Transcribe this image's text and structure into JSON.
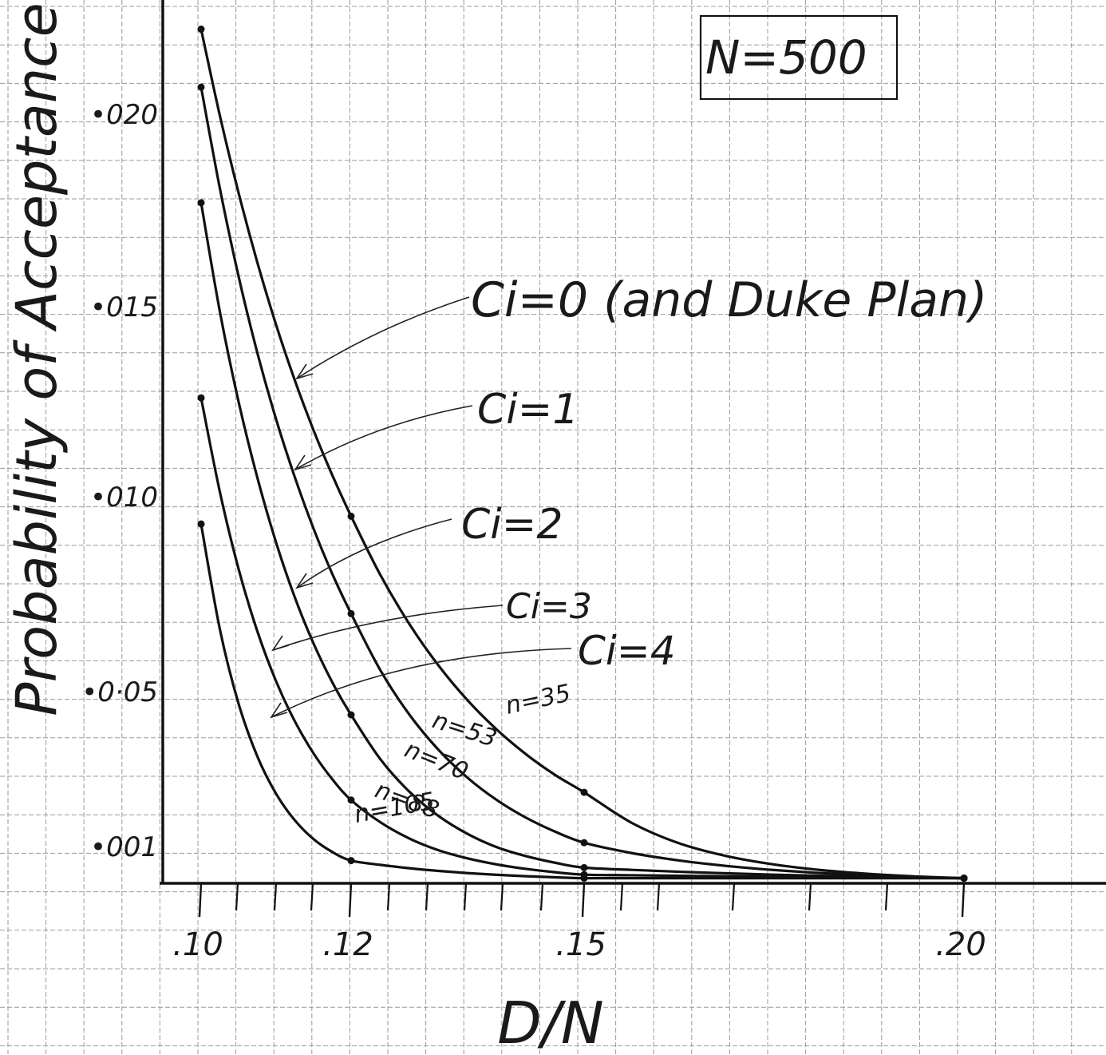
{
  "chart_data": {
    "type": "line",
    "xlabel": "D/N",
    "ylabel": "Probability of Acceptance",
    "xlim": [
      0.1,
      0.2
    ],
    "x_ticks": [
      {
        "value": 0.1,
        "label": ".10"
      },
      {
        "value": 0.12,
        "label": ".12"
      },
      {
        "value": 0.15,
        "label": ".15"
      },
      {
        "value": 0.2,
        "label": ".20"
      }
    ],
    "y_ticks": [
      {
        "value": 0.001,
        "label": "•001"
      },
      {
        "value": 0.005,
        "label": "•0·05"
      },
      {
        "value": 0.01,
        "label": "•010"
      },
      {
        "value": 0.015,
        "label": "•015"
      },
      {
        "value": 0.02,
        "label": "•020"
      }
    ],
    "annotation_box": "N=500",
    "series": [
      {
        "name": "Ci=0 (and Duke Plan)",
        "curve_label": "n=35",
        "x": [
          0.1,
          0.12,
          0.15,
          0.2
        ],
        "y": [
          0.0222,
          0.0095,
          0.0024,
          0.0001
        ]
      },
      {
        "name": "Ci=1",
        "curve_label": "n=53",
        "x": [
          0.1,
          0.12,
          0.15,
          0.2
        ],
        "y": [
          0.0207,
          0.007,
          0.0011,
          0.0001
        ]
      },
      {
        "name": "Ci=2",
        "curve_label": "n=70",
        "x": [
          0.1,
          0.12,
          0.15,
          0.2
        ],
        "y": [
          0.0177,
          0.0044,
          0.0004,
          0.0001
        ]
      },
      {
        "name": "Ci=3",
        "curve_label": "n=88",
        "x": [
          0.1,
          0.12,
          0.15,
          0.2
        ],
        "y": [
          0.0126,
          0.0022,
          0.0002,
          0.0001
        ]
      },
      {
        "name": "Ci=4",
        "curve_label": "n=105",
        "x": [
          0.1,
          0.12,
          0.15,
          0.2
        ],
        "y": [
          0.0093,
          0.0006,
          0.0001,
          0.0001
        ]
      }
    ]
  },
  "callouts": [
    {
      "text": "Ci=0 (and Duke Plan)"
    },
    {
      "text": "Ci=1"
    },
    {
      "text": "Ci=2"
    },
    {
      "text": "Ci=3"
    },
    {
      "text": "Ci=4"
    }
  ]
}
